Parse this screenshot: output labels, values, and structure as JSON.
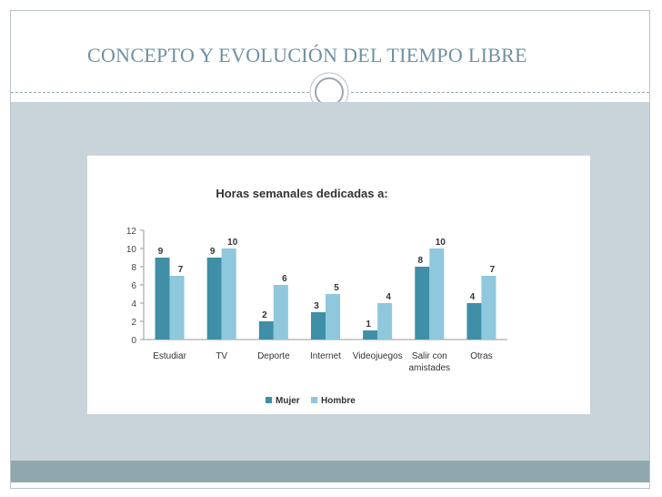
{
  "slide": {
    "title": "CONCEPTO Y EVOLUCIÓN DEL TIEMPO LIBRE"
  },
  "colors": {
    "title": "#6f8fa1",
    "panel": "#c9d4da",
    "footer": "#8fa8ae",
    "mujer": "#3f8fa6",
    "hombre": "#8fc7dd"
  },
  "chart_data": {
    "type": "bar",
    "title": "Horas semanales dedicadas a:",
    "categories": [
      [
        "Estudiar"
      ],
      [
        "TV"
      ],
      [
        "Deporte"
      ],
      [
        "Internet"
      ],
      [
        "Videojuegos"
      ],
      [
        "Salir con",
        "amistades"
      ],
      [
        "Otras"
      ]
    ],
    "series": [
      {
        "name": "Mujer",
        "values": [
          9,
          9,
          2,
          3,
          1,
          8,
          4
        ],
        "color": "#3f8fa6"
      },
      {
        "name": "Hombre",
        "values": [
          7,
          10,
          6,
          5,
          4,
          10,
          7
        ],
        "color": "#8fc7dd"
      }
    ],
    "y_ticks": [
      "0",
      "2",
      "4",
      "6",
      "8",
      "10",
      "12"
    ],
    "ylim": [
      0,
      12
    ],
    "grid": false,
    "data_labels": true,
    "legend_position": "bottom"
  }
}
